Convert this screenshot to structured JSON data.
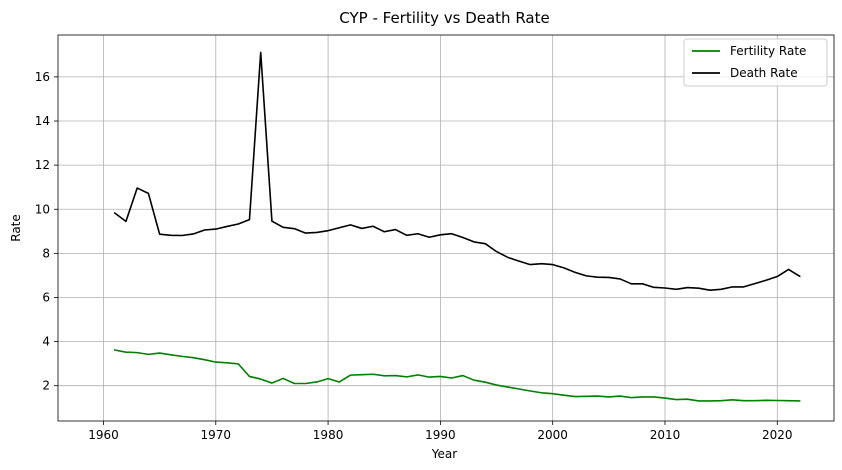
{
  "chart_data": {
    "type": "line",
    "title": "CYP - Fertility vs Death Rate",
    "xlabel": "Year",
    "ylabel": "Rate",
    "xlim": [
      1955.95,
      2025.05
    ],
    "ylim": [
      0.4,
      17.9
    ],
    "xticks": [
      1960,
      1970,
      1980,
      1990,
      2000,
      2010,
      2020
    ],
    "yticks": [
      2,
      4,
      6,
      8,
      10,
      12,
      14,
      16
    ],
    "grid": true,
    "legend_position": "top-right",
    "x": [
      1961,
      1962,
      1963,
      1964,
      1965,
      1966,
      1967,
      1968,
      1969,
      1970,
      1971,
      1972,
      1973,
      1974,
      1975,
      1976,
      1977,
      1978,
      1979,
      1980,
      1981,
      1982,
      1983,
      1984,
      1985,
      1986,
      1987,
      1988,
      1989,
      1990,
      1991,
      1992,
      1993,
      1994,
      1995,
      1996,
      1997,
      1998,
      1999,
      2000,
      2001,
      2002,
      2003,
      2004,
      2005,
      2006,
      2007,
      2008,
      2009,
      2010,
      2011,
      2012,
      2013,
      2014,
      2015,
      2016,
      2017,
      2018,
      2019,
      2020,
      2021,
      2022
    ],
    "series": [
      {
        "name": "Fertility Rate",
        "color": "#008000",
        "values": [
          3.62,
          3.52,
          3.5,
          3.42,
          3.48,
          3.4,
          3.33,
          3.27,
          3.18,
          3.07,
          3.04,
          2.99,
          2.42,
          2.3,
          2.12,
          2.33,
          2.1,
          2.1,
          2.17,
          2.32,
          2.17,
          2.48,
          2.5,
          2.52,
          2.45,
          2.46,
          2.4,
          2.49,
          2.39,
          2.42,
          2.35,
          2.46,
          2.25,
          2.16,
          2.03,
          1.94,
          1.85,
          1.76,
          1.68,
          1.64,
          1.57,
          1.51,
          1.52,
          1.53,
          1.49,
          1.53,
          1.46,
          1.49,
          1.49,
          1.44,
          1.37,
          1.39,
          1.31,
          1.31,
          1.32,
          1.36,
          1.32,
          1.32,
          1.34,
          1.33,
          1.32,
          1.31
        ]
      },
      {
        "name": "Death Rate",
        "color": "#000000",
        "values": [
          9.83,
          9.45,
          10.96,
          10.72,
          8.87,
          8.82,
          8.81,
          8.88,
          9.06,
          9.1,
          9.22,
          9.33,
          9.53,
          17.11,
          9.46,
          9.18,
          9.12,
          8.92,
          8.95,
          9.03,
          9.16,
          9.29,
          9.13,
          9.23,
          8.98,
          9.08,
          8.82,
          8.89,
          8.73,
          8.84,
          8.89,
          8.72,
          8.52,
          8.44,
          8.08,
          7.82,
          7.65,
          7.49,
          7.53,
          7.49,
          7.34,
          7.14,
          6.98,
          6.92,
          6.91,
          6.84,
          6.62,
          6.62,
          6.46,
          6.43,
          6.37,
          6.45,
          6.42,
          6.33,
          6.37,
          6.48,
          6.48,
          6.63,
          6.78,
          6.95,
          7.27,
          6.96
        ]
      }
    ]
  }
}
